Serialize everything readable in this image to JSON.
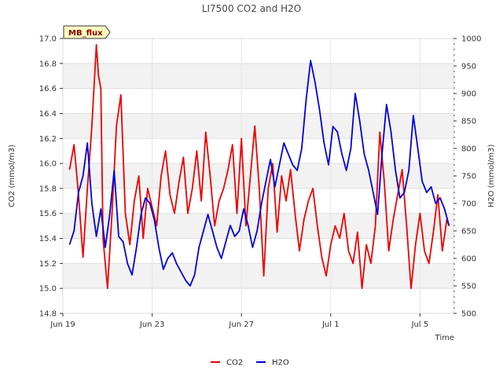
{
  "chart_data": {
    "type": "line",
    "title": "LI7500 CO2 and H2O",
    "xlabel": "Time",
    "ylabel_left": "CO2 (mmol/m3)",
    "ylabel_right": "H2O (mmol/m3)",
    "badge": "MB_flux",
    "x_ticks": [
      {
        "label": "Jun 19",
        "day": 0
      },
      {
        "label": "Jun 23",
        "day": 4
      },
      {
        "label": "Jun 27",
        "day": 8
      },
      {
        "label": "Jul 1",
        "day": 12
      },
      {
        "label": "Jul 5",
        "day": 16
      }
    ],
    "xlim_days": [
      0,
      17.5
    ],
    "y_left_ticks": [
      "14.8",
      "15.0",
      "15.2",
      "15.4",
      "15.6",
      "15.8",
      "16.0",
      "16.2",
      "16.4",
      "16.6",
      "16.8",
      "17.0"
    ],
    "ylim_left": [
      14.8,
      17.0
    ],
    "y_right_ticks": [
      "500",
      "550",
      "600",
      "650",
      "700",
      "750",
      "800",
      "850",
      "900",
      "950",
      "1000"
    ],
    "ylim_right": [
      500,
      1000
    ],
    "grid": true,
    "legend_position": "bottom-center",
    "series": [
      {
        "name": "CO2",
        "axis": "left",
        "color": "#ee0000",
        "x": [
          0.3,
          0.5,
          0.7,
          0.9,
          1.1,
          1.3,
          1.5,
          1.6,
          1.7,
          1.8,
          2.0,
          2.2,
          2.4,
          2.6,
          2.8,
          3.0,
          3.2,
          3.4,
          3.6,
          3.8,
          4.0,
          4.2,
          4.4,
          4.6,
          4.8,
          5.0,
          5.2,
          5.4,
          5.6,
          5.8,
          6.0,
          6.2,
          6.4,
          6.6,
          6.8,
          7.0,
          7.2,
          7.4,
          7.6,
          7.8,
          8.0,
          8.2,
          8.4,
          8.6,
          8.8,
          9.0,
          9.2,
          9.4,
          9.6,
          9.8,
          10.0,
          10.2,
          10.4,
          10.6,
          10.8,
          11.0,
          11.2,
          11.4,
          11.6,
          11.8,
          12.0,
          12.2,
          12.4,
          12.6,
          12.8,
          13.0,
          13.2,
          13.4,
          13.6,
          13.8,
          14.0,
          14.2,
          14.4,
          14.6,
          14.8,
          15.0,
          15.2,
          15.4,
          15.6,
          15.8,
          16.0,
          16.2,
          16.4,
          16.6,
          16.8,
          17.0,
          17.2,
          17.3
        ],
        "values": [
          15.95,
          16.15,
          15.75,
          15.25,
          15.8,
          16.3,
          16.95,
          16.7,
          16.6,
          15.4,
          15.0,
          15.6,
          16.3,
          16.55,
          15.6,
          15.35,
          15.7,
          15.9,
          15.4,
          15.8,
          15.65,
          15.5,
          15.9,
          16.1,
          15.75,
          15.6,
          15.85,
          16.05,
          15.6,
          15.8,
          16.1,
          15.7,
          16.25,
          15.9,
          15.5,
          15.7,
          15.8,
          15.95,
          16.15,
          15.6,
          16.2,
          15.5,
          15.9,
          16.3,
          15.8,
          15.1,
          15.8,
          16.0,
          15.45,
          15.9,
          15.7,
          15.95,
          15.6,
          15.3,
          15.55,
          15.7,
          15.8,
          15.5,
          15.25,
          15.1,
          15.35,
          15.5,
          15.4,
          15.6,
          15.3,
          15.2,
          15.45,
          15.0,
          15.35,
          15.2,
          15.5,
          16.25,
          15.85,
          15.3,
          15.55,
          15.75,
          15.95,
          15.5,
          15.0,
          15.35,
          15.6,
          15.3,
          15.2,
          15.45,
          15.75,
          15.3,
          15.55,
          15.5
        ]
      },
      {
        "name": "H2O",
        "axis": "right",
        "color": "#0000dd",
        "x": [
          0.3,
          0.5,
          0.7,
          0.9,
          1.1,
          1.3,
          1.5,
          1.7,
          1.9,
          2.1,
          2.3,
          2.5,
          2.7,
          2.9,
          3.1,
          3.3,
          3.5,
          3.7,
          3.9,
          4.1,
          4.3,
          4.5,
          4.7,
          4.9,
          5.1,
          5.3,
          5.5,
          5.7,
          5.9,
          6.1,
          6.3,
          6.5,
          6.7,
          6.9,
          7.1,
          7.3,
          7.5,
          7.7,
          7.9,
          8.1,
          8.3,
          8.5,
          8.7,
          8.9,
          9.1,
          9.3,
          9.5,
          9.7,
          9.9,
          10.1,
          10.3,
          10.5,
          10.7,
          10.9,
          11.1,
          11.3,
          11.5,
          11.7,
          11.9,
          12.1,
          12.3,
          12.5,
          12.7,
          12.9,
          13.1,
          13.3,
          13.5,
          13.7,
          13.9,
          14.1,
          14.3,
          14.5,
          14.7,
          14.9,
          15.1,
          15.3,
          15.5,
          15.7,
          15.9,
          16.1,
          16.3,
          16.5,
          16.7,
          16.9,
          17.1,
          17.3
        ],
        "values": [
          625,
          650,
          720,
          750,
          810,
          700,
          640,
          690,
          620,
          680,
          760,
          640,
          630,
          590,
          570,
          620,
          680,
          710,
          700,
          670,
          620,
          580,
          600,
          610,
          590,
          575,
          560,
          550,
          570,
          620,
          650,
          680,
          650,
          620,
          600,
          630,
          660,
          640,
          650,
          690,
          660,
          620,
          650,
          700,
          740,
          780,
          730,
          770,
          810,
          790,
          770,
          760,
          800,
          890,
          960,
          920,
          870,
          810,
          770,
          840,
          830,
          790,
          760,
          800,
          900,
          850,
          790,
          760,
          720,
          680,
          790,
          880,
          830,
          760,
          710,
          720,
          760,
          860,
          800,
          740,
          720,
          730,
          700,
          710,
          690,
          660
        ]
      }
    ]
  }
}
